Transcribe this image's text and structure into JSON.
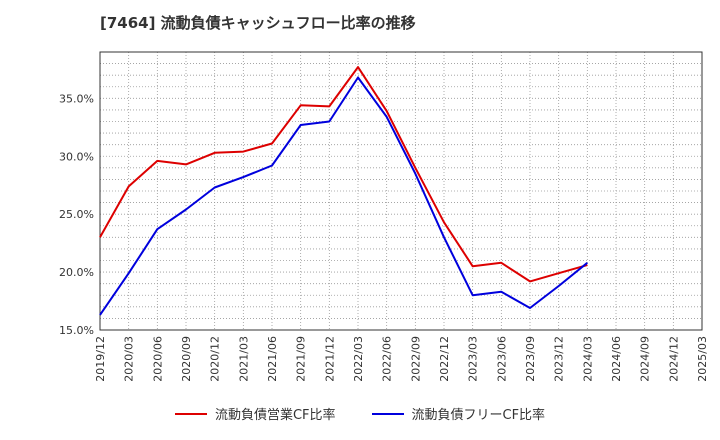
{
  "chart_data": {
    "type": "line",
    "title": "[7464]  流動負債キャッシュフロー比率の推移",
    "xlabel": "",
    "ylabel": "",
    "x_ticks": [
      "2019/12",
      "2020/03",
      "2020/06",
      "2020/09",
      "2020/12",
      "2021/03",
      "2021/06",
      "2021/09",
      "2021/12",
      "2022/03",
      "2022/06",
      "2022/09",
      "2022/12",
      "2023/03",
      "2023/06",
      "2023/09",
      "2023/12",
      "2024/03",
      "2024/06",
      "2024/09",
      "2024/12",
      "2025/03"
    ],
    "y_ticks": [
      "15.0%",
      "20.0%",
      "25.0%",
      "30.0%",
      "35.0%"
    ],
    "y_tick_values": [
      15,
      20,
      25,
      30,
      35
    ],
    "ylim": [
      15,
      39
    ],
    "grid": true,
    "legend_position": "bottom",
    "series": [
      {
        "name": "流動負債営業CF比率",
        "color": "#dd0000",
        "x": [
          "2019/12",
          "2020/03",
          "2020/06",
          "2020/09",
          "2020/12",
          "2021/03",
          "2021/06",
          "2021/09",
          "2021/12",
          "2022/03",
          "2022/06",
          "2022/09",
          "2022/12",
          "2023/03",
          "2023/06",
          "2023/09",
          "2023/12",
          "2024/03"
        ],
        "values": [
          23.0,
          27.4,
          29.6,
          29.3,
          30.3,
          30.4,
          31.1,
          34.4,
          34.3,
          37.7,
          33.9,
          29.0,
          24.3,
          20.5,
          20.8,
          19.2,
          19.9,
          20.6
        ]
      },
      {
        "name": "流動負債フリーCF比率",
        "color": "#0000dd",
        "x": [
          "2019/12",
          "2020/03",
          "2020/06",
          "2020/09",
          "2020/12",
          "2021/03",
          "2021/06",
          "2021/09",
          "2021/12",
          "2022/03",
          "2022/06",
          "2022/09",
          "2022/12",
          "2023/03",
          "2023/06",
          "2023/09",
          "2023/12",
          "2024/03"
        ],
        "values": [
          16.3,
          19.9,
          23.7,
          25.4,
          27.3,
          28.2,
          29.2,
          32.7,
          33.0,
          36.8,
          33.4,
          28.5,
          23.0,
          18.0,
          18.3,
          16.9,
          18.8,
          20.8
        ]
      }
    ]
  }
}
